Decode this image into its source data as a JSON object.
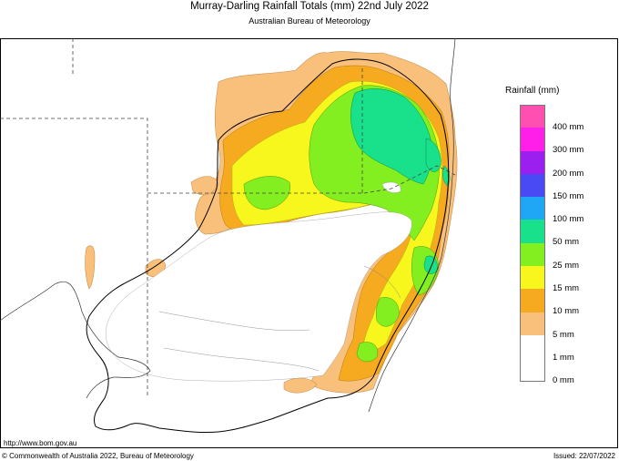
{
  "header": {
    "title": "Murray-Darling Rainfall Totals (mm)      22nd July 2022",
    "subtitle": "Australian Bureau of Meteorology"
  },
  "legend": {
    "title": "Rainfall (mm)",
    "items": [
      {
        "label": "400 mm",
        "color": "#ff4fb0"
      },
      {
        "label": "300 mm",
        "color": "#ff1fe8"
      },
      {
        "label": "200 mm",
        "color": "#9b20f0"
      },
      {
        "label": "150 mm",
        "color": "#4a4af5"
      },
      {
        "label": "100 mm",
        "color": "#1fa6f5"
      },
      {
        "label": "50 mm",
        "color": "#19e08a"
      },
      {
        "label": "25 mm",
        "color": "#83ee20"
      },
      {
        "label": "15 mm",
        "color": "#f7f71e"
      },
      {
        "label": "10 mm",
        "color": "#f5aa20"
      },
      {
        "label": "5 mm",
        "color": "#f8c07a"
      },
      {
        "label": "1 mm",
        "color": "#ffffff"
      },
      {
        "label": "0 mm",
        "color": null
      }
    ]
  },
  "footer": {
    "url": "http://www.bom.gov.au",
    "copyright": "© Commonwealth of Australia 2022, Bureau of Meteorology",
    "issued": "Issued: 22/07/2022"
  }
}
